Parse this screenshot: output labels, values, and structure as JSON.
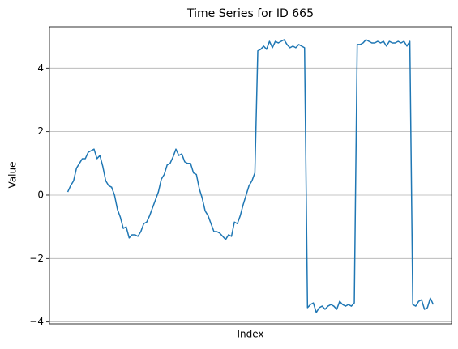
{
  "chart_data": {
    "type": "line",
    "title": "Time Series for ID 665",
    "xlabel": "Index",
    "ylabel": "Value",
    "color": "#1f77b4",
    "grid": "y",
    "xlim": [
      -6.25,
      131.25
    ],
    "ylim": [
      -4.06,
      5.31
    ],
    "yticks": [
      {
        "value": -4,
        "label": "−4"
      },
      {
        "value": -2,
        "label": "−2"
      },
      0,
      2,
      4
    ],
    "values": [
      0.1,
      0.3,
      0.45,
      0.85,
      1.0,
      1.15,
      1.15,
      1.35,
      1.4,
      1.45,
      1.15,
      1.25,
      0.9,
      0.45,
      0.3,
      0.25,
      0.0,
      -0.45,
      -0.7,
      -1.05,
      -1.0,
      -1.35,
      -1.25,
      -1.25,
      -1.3,
      -1.15,
      -0.9,
      -0.85,
      -0.65,
      -0.4,
      -0.15,
      0.1,
      0.5,
      0.65,
      0.95,
      1.0,
      1.2,
      1.45,
      1.25,
      1.3,
      1.05,
      1.0,
      1.0,
      0.7,
      0.65,
      0.2,
      -0.1,
      -0.5,
      -0.65,
      -0.9,
      -1.15,
      -1.15,
      -1.2,
      -1.3,
      -1.4,
      -1.25,
      -1.3,
      -0.85,
      -0.9,
      -0.65,
      -0.3,
      0.0,
      0.3,
      0.45,
      0.7,
      4.55,
      4.6,
      4.7,
      4.6,
      4.85,
      4.65,
      4.85,
      4.8,
      4.85,
      4.9,
      4.75,
      4.65,
      4.7,
      4.65,
      4.75,
      4.7,
      4.65,
      -3.55,
      -3.45,
      -3.4,
      -3.7,
      -3.55,
      -3.5,
      -3.6,
      -3.5,
      -3.45,
      -3.5,
      -3.6,
      -3.35,
      -3.45,
      -3.5,
      -3.45,
      -3.5,
      -3.4,
      4.75,
      4.75,
      4.8,
      4.9,
      4.85,
      4.8,
      4.8,
      4.85,
      4.8,
      4.85,
      4.7,
      4.85,
      4.8,
      4.8,
      4.85,
      4.8,
      4.85,
      4.7,
      4.85,
      -3.45,
      -3.5,
      -3.35,
      -3.3,
      -3.6,
      -3.55,
      -3.25,
      -3.45
    ]
  }
}
